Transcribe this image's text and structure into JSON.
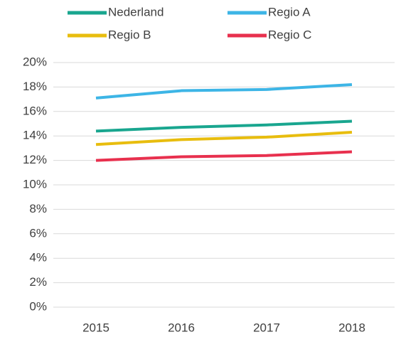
{
  "chart_data": {
    "type": "line",
    "categories": [
      "2015",
      "2016",
      "2017",
      "2018"
    ],
    "series": [
      {
        "name": "Nederland",
        "color": "#19a68f",
        "values": [
          14.4,
          14.7,
          14.9,
          15.2
        ]
      },
      {
        "name": "Regio A",
        "color": "#3db5e6",
        "values": [
          17.1,
          17.7,
          17.8,
          18.2
        ]
      },
      {
        "name": "Regio B",
        "color": "#e8bd0e",
        "values": [
          13.3,
          13.7,
          13.9,
          14.3
        ]
      },
      {
        "name": "Regio C",
        "color": "#e8304e",
        "values": [
          12.0,
          12.3,
          12.4,
          12.7
        ]
      }
    ],
    "ylim": [
      0,
      20
    ],
    "yticks": [
      {
        "value": 0,
        "label": "0%"
      },
      {
        "value": 2,
        "label": "2%"
      },
      {
        "value": 4,
        "label": "4%"
      },
      {
        "value": 6,
        "label": "6%"
      },
      {
        "value": 8,
        "label": "8%"
      },
      {
        "value": 10,
        "label": "10%"
      },
      {
        "value": 12,
        "label": "12%"
      },
      {
        "value": 14,
        "label": "14%"
      },
      {
        "value": 16,
        "label": "16%"
      },
      {
        "value": 18,
        "label": "18%"
      },
      {
        "value": 20,
        "label": "20%"
      }
    ],
    "grid": true,
    "legend": "top"
  }
}
